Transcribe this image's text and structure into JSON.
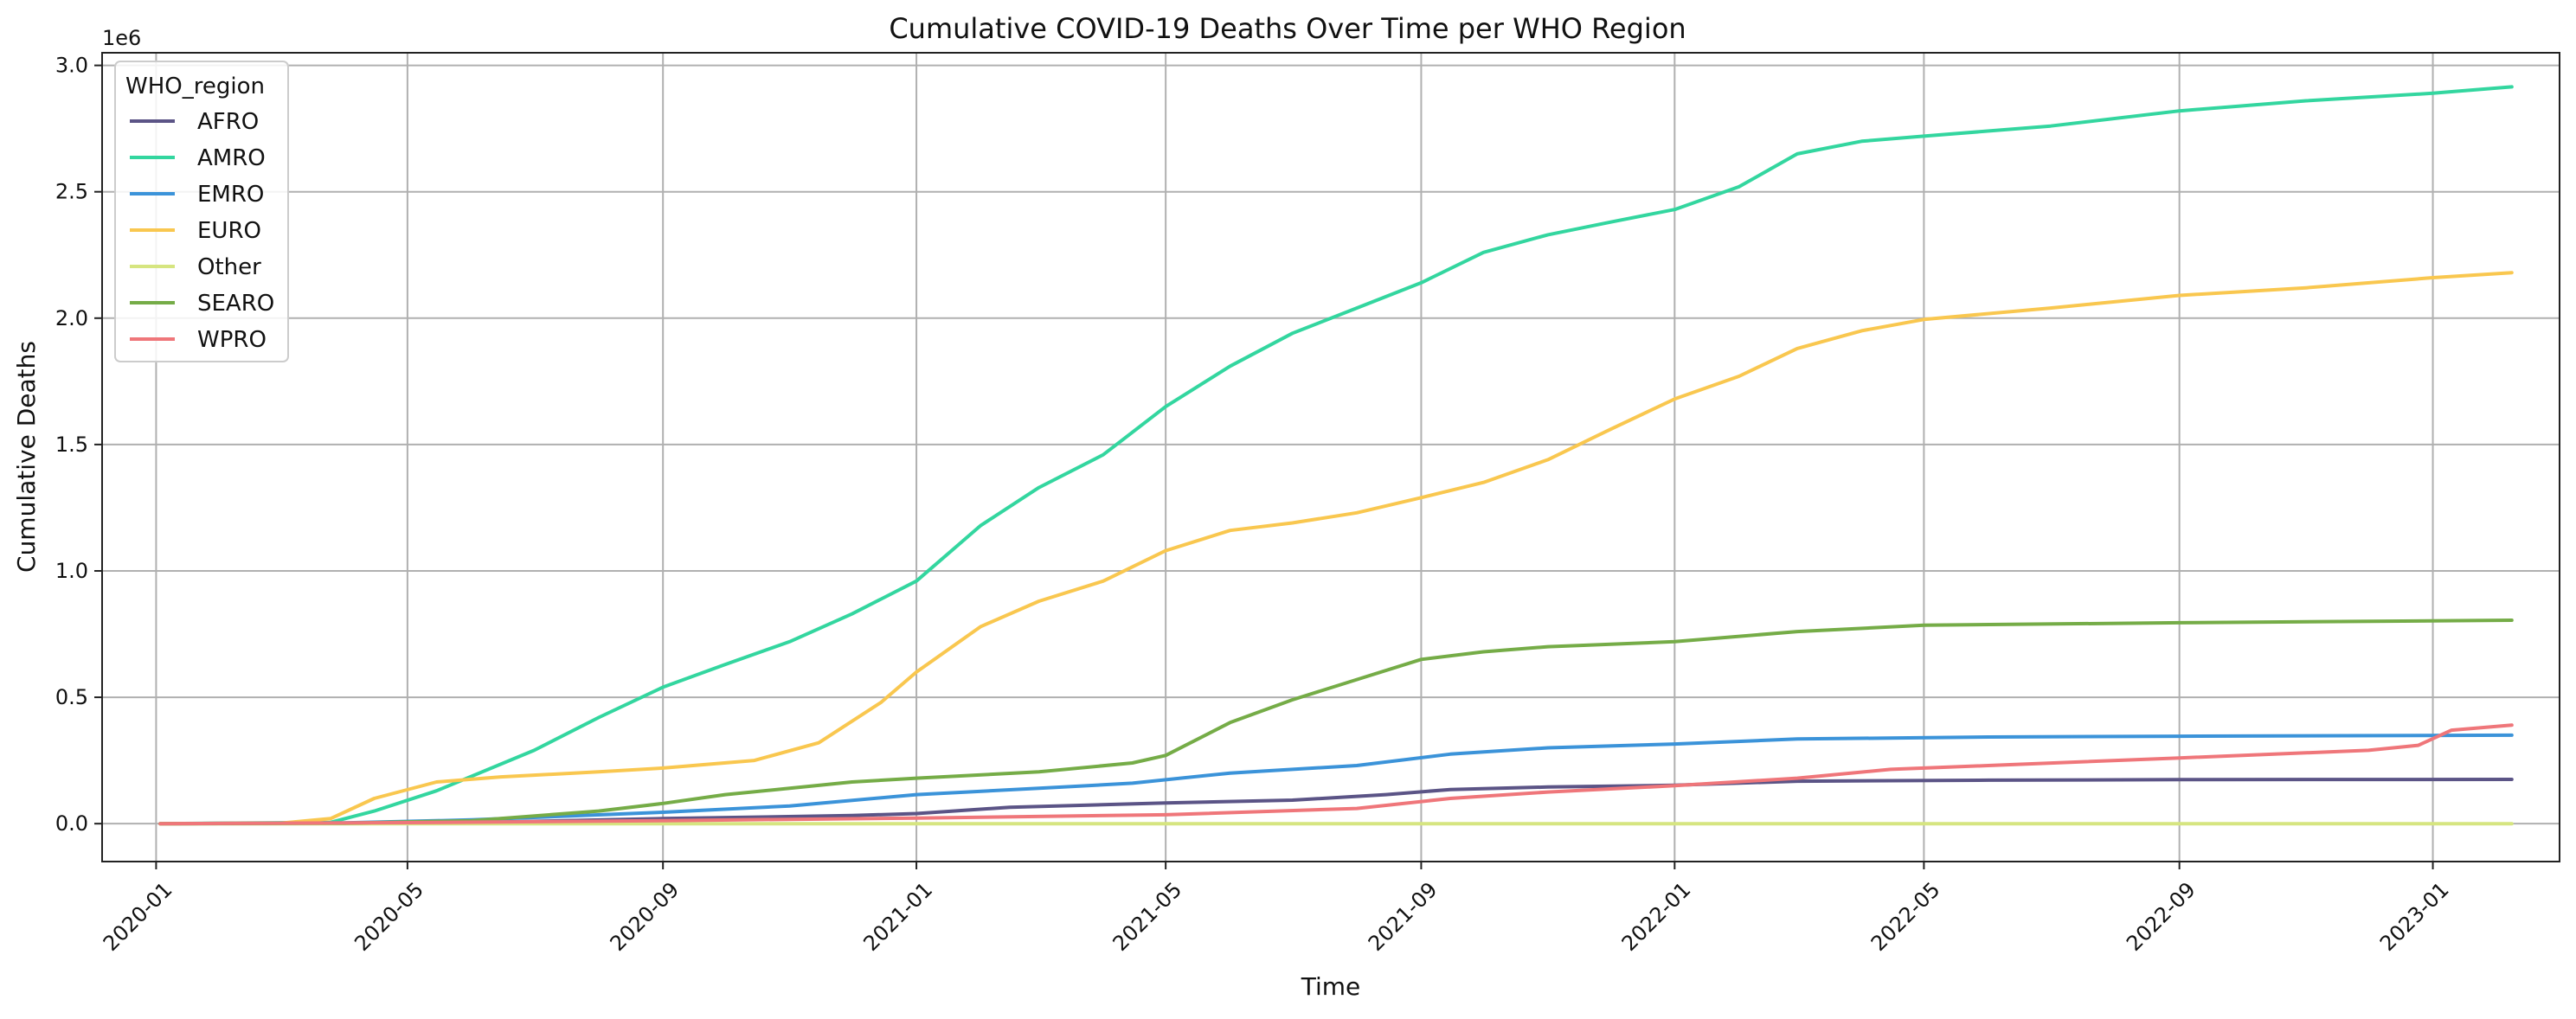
{
  "chart_data": {
    "type": "line",
    "title": "Cumulative COVID-19 Deaths Over Time per WHO Region",
    "xlabel": "Time",
    "ylabel": "Cumulative Deaths",
    "y_scale_label": "1e6",
    "xlim": [
      "2019-12-06",
      "2023-03-03"
    ],
    "ylim": [
      -150000,
      3050000
    ],
    "x_ticks": [
      "2020-01",
      "2020-05",
      "2020-09",
      "2021-01",
      "2021-05",
      "2021-09",
      "2022-01",
      "2022-05",
      "2022-09",
      "2023-01"
    ],
    "y_ticks": [
      0,
      500000,
      1000000,
      1500000,
      2000000,
      2500000,
      3000000
    ],
    "y_tick_labels": [
      "0.0",
      "0.5",
      "1.0",
      "1.5",
      "2.0",
      "2.5",
      "3.0"
    ],
    "grid": true,
    "legend": {
      "title": "WHO_region",
      "placement": "top-left"
    },
    "series": [
      {
        "name": "AFRO",
        "color": "#5b5486",
        "points": [
          [
            "2020-01-03",
            0
          ],
          [
            "2020-04-01",
            500
          ],
          [
            "2020-06-01",
            4000
          ],
          [
            "2020-09-01",
            20000
          ],
          [
            "2020-12-01",
            32000
          ],
          [
            "2021-01-01",
            40000
          ],
          [
            "2021-02-15",
            65000
          ],
          [
            "2021-05-01",
            82000
          ],
          [
            "2021-07-01",
            93000
          ],
          [
            "2021-08-15",
            115000
          ],
          [
            "2021-09-15",
            135000
          ],
          [
            "2021-11-01",
            145000
          ],
          [
            "2022-01-01",
            152000
          ],
          [
            "2022-03-01",
            168000
          ],
          [
            "2022-06-01",
            172000
          ],
          [
            "2022-09-01",
            174000
          ],
          [
            "2023-02-08",
            175000
          ]
        ]
      },
      {
        "name": "AMRO",
        "color": "#33d69f",
        "points": [
          [
            "2020-01-03",
            0
          ],
          [
            "2020-03-25",
            5000
          ],
          [
            "2020-04-15",
            50000
          ],
          [
            "2020-05-15",
            130000
          ],
          [
            "2020-07-01",
            290000
          ],
          [
            "2020-08-01",
            420000
          ],
          [
            "2020-09-01",
            540000
          ],
          [
            "2020-10-01",
            630000
          ],
          [
            "2020-11-01",
            720000
          ],
          [
            "2020-12-01",
            830000
          ],
          [
            "2021-01-01",
            960000
          ],
          [
            "2021-02-01",
            1180000
          ],
          [
            "2021-03-01",
            1330000
          ],
          [
            "2021-04-01",
            1460000
          ],
          [
            "2021-05-01",
            1650000
          ],
          [
            "2021-06-01",
            1810000
          ],
          [
            "2021-07-01",
            1940000
          ],
          [
            "2021-08-01",
            2040000
          ],
          [
            "2021-09-01",
            2140000
          ],
          [
            "2021-10-01",
            2260000
          ],
          [
            "2021-11-01",
            2330000
          ],
          [
            "2021-12-01",
            2380000
          ],
          [
            "2022-01-01",
            2430000
          ],
          [
            "2022-02-01",
            2520000
          ],
          [
            "2022-03-01",
            2650000
          ],
          [
            "2022-04-01",
            2700000
          ],
          [
            "2022-05-01",
            2720000
          ],
          [
            "2022-07-01",
            2760000
          ],
          [
            "2022-09-01",
            2820000
          ],
          [
            "2022-11-01",
            2860000
          ],
          [
            "2023-01-01",
            2890000
          ],
          [
            "2023-02-08",
            2915000
          ]
        ]
      },
      {
        "name": "EMRO",
        "color": "#3b93d9",
        "points": [
          [
            "2020-01-03",
            0
          ],
          [
            "2020-04-01",
            3000
          ],
          [
            "2020-06-01",
            15000
          ],
          [
            "2020-09-01",
            45000
          ],
          [
            "2020-11-01",
            70000
          ],
          [
            "2021-01-01",
            115000
          ],
          [
            "2021-03-01",
            140000
          ],
          [
            "2021-04-15",
            160000
          ],
          [
            "2021-06-01",
            200000
          ],
          [
            "2021-08-01",
            230000
          ],
          [
            "2021-09-15",
            275000
          ],
          [
            "2021-11-01",
            300000
          ],
          [
            "2022-01-01",
            315000
          ],
          [
            "2022-03-01",
            335000
          ],
          [
            "2022-06-01",
            343000
          ],
          [
            "2022-09-01",
            346000
          ],
          [
            "2023-02-08",
            350000
          ]
        ]
      },
      {
        "name": "EURO",
        "color": "#f9c74f",
        "points": [
          [
            "2020-01-03",
            0
          ],
          [
            "2020-03-01",
            2000
          ],
          [
            "2020-03-25",
            20000
          ],
          [
            "2020-04-15",
            100000
          ],
          [
            "2020-05-15",
            165000
          ],
          [
            "2020-06-15",
            185000
          ],
          [
            "2020-08-01",
            205000
          ],
          [
            "2020-09-01",
            220000
          ],
          [
            "2020-10-15",
            250000
          ],
          [
            "2020-11-15",
            320000
          ],
          [
            "2020-12-15",
            480000
          ],
          [
            "2021-01-01",
            600000
          ],
          [
            "2021-02-01",
            780000
          ],
          [
            "2021-03-01",
            880000
          ],
          [
            "2021-04-01",
            960000
          ],
          [
            "2021-05-01",
            1080000
          ],
          [
            "2021-06-01",
            1160000
          ],
          [
            "2021-07-01",
            1190000
          ],
          [
            "2021-08-01",
            1230000
          ],
          [
            "2021-09-01",
            1290000
          ],
          [
            "2021-10-01",
            1350000
          ],
          [
            "2021-11-01",
            1440000
          ],
          [
            "2021-12-01",
            1560000
          ],
          [
            "2022-01-01",
            1680000
          ],
          [
            "2022-02-01",
            1770000
          ],
          [
            "2022-03-01",
            1880000
          ],
          [
            "2022-04-01",
            1950000
          ],
          [
            "2022-05-01",
            1995000
          ],
          [
            "2022-07-01",
            2040000
          ],
          [
            "2022-09-01",
            2090000
          ],
          [
            "2022-11-01",
            2120000
          ],
          [
            "2023-01-01",
            2160000
          ],
          [
            "2023-02-08",
            2180000
          ]
        ]
      },
      {
        "name": "Other",
        "color": "#d6e580",
        "points": [
          [
            "2020-01-03",
            0
          ],
          [
            "2023-02-08",
            13
          ]
        ]
      },
      {
        "name": "SEARO",
        "color": "#75ac47",
        "points": [
          [
            "2020-01-03",
            0
          ],
          [
            "2020-04-01",
            2000
          ],
          [
            "2020-06-01",
            12000
          ],
          [
            "2020-08-01",
            50000
          ],
          [
            "2020-09-01",
            80000
          ],
          [
            "2020-10-01",
            115000
          ],
          [
            "2020-11-01",
            140000
          ],
          [
            "2020-12-01",
            165000
          ],
          [
            "2021-01-01",
            180000
          ],
          [
            "2021-03-01",
            205000
          ],
          [
            "2021-04-15",
            240000
          ],
          [
            "2021-05-01",
            270000
          ],
          [
            "2021-06-01",
            400000
          ],
          [
            "2021-07-01",
            490000
          ],
          [
            "2021-08-01",
            570000
          ],
          [
            "2021-09-01",
            650000
          ],
          [
            "2021-10-01",
            680000
          ],
          [
            "2021-11-01",
            700000
          ],
          [
            "2022-01-01",
            720000
          ],
          [
            "2022-03-01",
            760000
          ],
          [
            "2022-05-01",
            785000
          ],
          [
            "2022-09-01",
            795000
          ],
          [
            "2023-02-08",
            805000
          ]
        ]
      },
      {
        "name": "WPRO",
        "color": "#ef767a",
        "points": [
          [
            "2020-01-03",
            0
          ],
          [
            "2020-05-01",
            4000
          ],
          [
            "2020-09-01",
            12000
          ],
          [
            "2021-01-01",
            22000
          ],
          [
            "2021-05-01",
            35000
          ],
          [
            "2021-08-01",
            60000
          ],
          [
            "2021-09-15",
            100000
          ],
          [
            "2021-11-01",
            125000
          ],
          [
            "2022-01-01",
            150000
          ],
          [
            "2022-03-01",
            180000
          ],
          [
            "2022-04-15",
            215000
          ],
          [
            "2022-06-01",
            230000
          ],
          [
            "2022-09-01",
            260000
          ],
          [
            "2022-12-01",
            290000
          ],
          [
            "2022-12-25",
            310000
          ],
          [
            "2023-01-10",
            370000
          ],
          [
            "2023-02-08",
            390000
          ]
        ]
      }
    ]
  }
}
